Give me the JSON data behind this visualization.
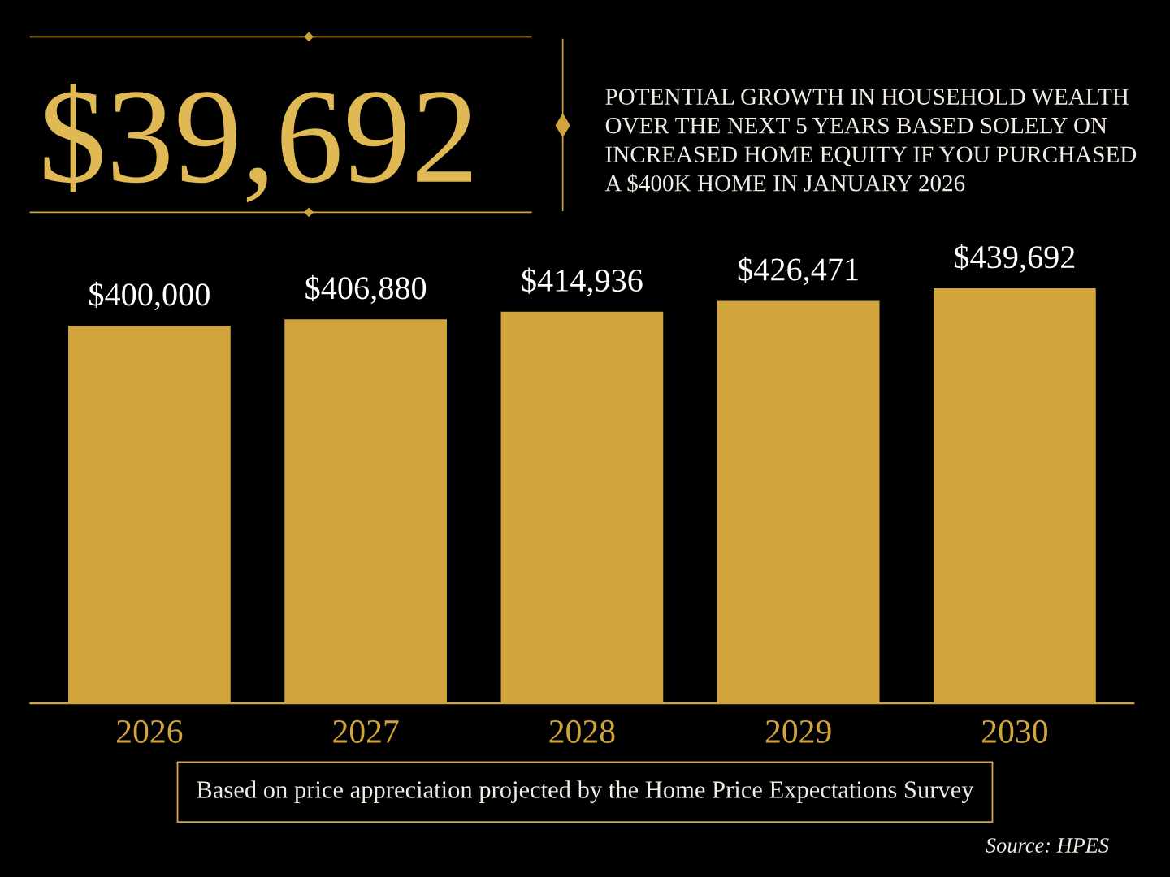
{
  "chart_data": {
    "type": "bar",
    "title": "$39,692",
    "subtitle": "POTENTIAL GROWTH IN HOUSEHOLD WEALTH\nOVER THE NEXT 5 YEARS BASED SOLELY ON\nINCREASED HOME EQUITY IF YOU PURCHASED\nA $400K HOME IN JANUARY 2026",
    "categories": [
      "2026",
      "2027",
      "2028",
      "2029",
      "2030"
    ],
    "values": [
      400000,
      406880,
      414936,
      426471,
      439692
    ],
    "value_labels": [
      "$400,000",
      "$406,880",
      "$414,936",
      "$426,471",
      "$439,692"
    ],
    "color": "#d2a43c",
    "tick_labels": "x",
    "grid": false,
    "legend": false,
    "annotations": [
      "Based on price appreciation projected by the Home Price Expectations Survey",
      "Source: HPES"
    ]
  }
}
